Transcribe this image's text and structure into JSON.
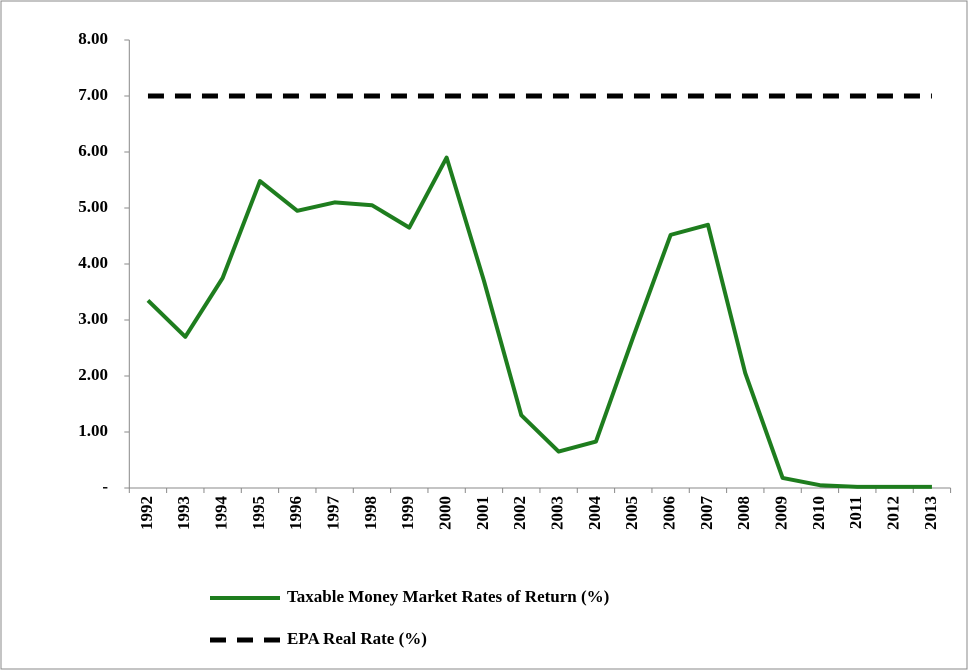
{
  "chart_data": {
    "type": "line",
    "categories": [
      "1992",
      "1993",
      "1994",
      "1995",
      "1996",
      "1997",
      "1998",
      "1999",
      "2000",
      "2001",
      "2002",
      "2003",
      "2004",
      "2005",
      "2006",
      "2007",
      "2008",
      "2009",
      "2010",
      "2011",
      "2012",
      "2013"
    ],
    "series": [
      {
        "name": "Taxable Money Market Rates of Return (%)",
        "color": "#1e7d1e",
        "dash": false,
        "values": [
          3.35,
          2.7,
          3.75,
          5.48,
          4.95,
          5.1,
          5.05,
          4.65,
          5.9,
          3.7,
          1.3,
          0.65,
          0.83,
          2.7,
          4.52,
          4.7,
          2.05,
          0.18,
          0.05,
          0.02,
          0.02,
          0.02
        ]
      },
      {
        "name": "EPA Real Rate (%)",
        "color": "#000000",
        "dash": true,
        "values": [
          7,
          7,
          7,
          7,
          7,
          7,
          7,
          7,
          7,
          7,
          7,
          7,
          7,
          7,
          7,
          7,
          7,
          7,
          7,
          7,
          7,
          7
        ]
      }
    ],
    "ylim": [
      0,
      8
    ],
    "yticks": [
      {
        "value": 0,
        "label": "-"
      },
      {
        "value": 1,
        "label": "1.00"
      },
      {
        "value": 2,
        "label": "2.00"
      },
      {
        "value": 3,
        "label": "3.00"
      },
      {
        "value": 4,
        "label": "4.00"
      },
      {
        "value": 5,
        "label": "5.00"
      },
      {
        "value": 6,
        "label": "6.00"
      },
      {
        "value": 7,
        "label": "7.00"
      },
      {
        "value": 8,
        "label": "8.00"
      }
    ],
    "grid": false
  }
}
